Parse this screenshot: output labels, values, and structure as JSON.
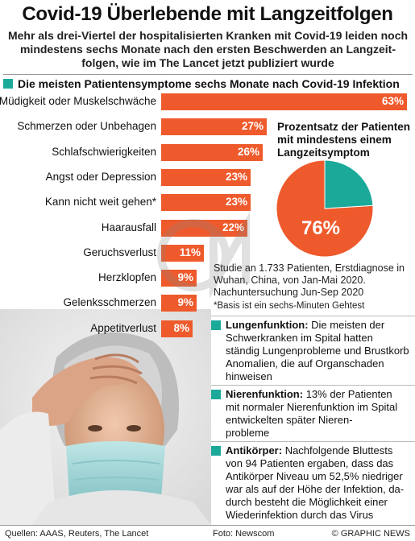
{
  "header": {
    "title": "Covid-19 Überlebende mit Langzeitfolgen",
    "subtitle_lines": [
      "Mehr als drei-Viertel der hospitalisierten Kranken mit Covid-19 leiden noch",
      "mindestens sechs Monate nach den ersten Beschwerden an Langzeit-",
      "folgen, wie im The Lancet jetzt publiziert wurde"
    ]
  },
  "section_title": "Die meisten Patientensymptome sechs Monate nach Covid-19 Infektion",
  "colors": {
    "bar": "#ee5a2c",
    "accent": "#1ba99a",
    "pie_rest": "#1ba99a"
  },
  "chart_data": [
    {
      "type": "bar",
      "orientation": "horizontal",
      "title": "Die meisten Patientensymptome sechs Monate nach Covid-19 Infektion",
      "categories": [
        "Müdigkeit oder Muskelschwäche",
        "Schmerzen oder Unbehagen",
        "Schlafschwierigkeiten",
        "Angst oder Depression",
        "Kann nicht weit gehen*",
        "Haarausfall",
        "Geruchsverlust",
        "Herzklopfen",
        "Gelenksschmerzen",
        "Appetitverlust"
      ],
      "values": [
        63,
        27,
        26,
        23,
        23,
        22,
        11,
        9,
        9,
        8
      ],
      "value_labels": [
        "63%",
        "27%",
        "26%",
        "23%",
        "23%",
        "22%",
        "11%",
        "9%",
        "9%",
        "8%"
      ],
      "xlim": [
        0,
        63
      ]
    },
    {
      "type": "pie",
      "title": "Prozentsatz der Patienten mit mindestens einem Langzeitsymptom",
      "title_lines": [
        "Prozentsatz der Patienten",
        "mit mindestens einem",
        "Langzeitsymptom"
      ],
      "values": [
        76,
        24
      ],
      "label": "76%"
    }
  ],
  "study_note_lines": [
    "Studie an 1.733 Patienten, Erstdiagnose in",
    "Wuhan, China, von Jan-Mai 2020.",
    "Nachuntersuchung Jun-Sep 2020"
  ],
  "basis_note": "*Basis ist ein sechs-Minuten Gehtest",
  "info_boxes": [
    {
      "heading": "Lungenfunktion:",
      "text_lines": [
        "Die meisten der",
        "Schwerkranken im Spital hatten",
        "ständig Lungenprobleme und Brustkorb",
        "Anomalien, die auf Organschaden",
        "hinweisen"
      ]
    },
    {
      "heading": "Nierenfunktion:",
      "text_lines": [
        "13% der Patienten",
        "mit normaler Nierenfunktion im Spital",
        "entwickelten später Nieren-",
        "probleme"
      ]
    },
    {
      "heading": "Antikörper:",
      "text_lines": [
        "Nachfolgende Bluttests",
        "von 94 Patienten ergaben, dass das",
        "Antikörper Niveau um 52,5% niedriger",
        "war als auf der Höhe der Infektion, da-",
        "durch besteht die Möglichkeit einer",
        "Wiederinfektion durch das Virus"
      ]
    }
  ],
  "footer": {
    "sources": "Quellen: AAAS, Reuters, The Lancet",
    "photo": "Foto: Newscom",
    "credit": "© GRAPHIC NEWS"
  }
}
